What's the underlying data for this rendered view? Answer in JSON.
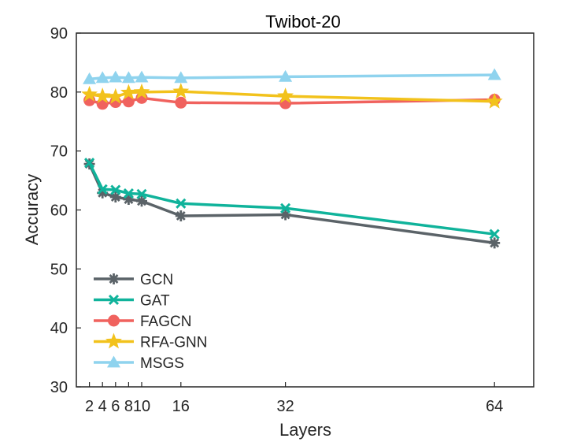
{
  "chart_data": {
    "type": "line",
    "title": "Twibot-20",
    "xlabel": "Layers",
    "ylabel": "Accuracy",
    "x": [
      2,
      4,
      6,
      8,
      10,
      16,
      32,
      64
    ],
    "xticks": [
      2,
      4,
      6,
      8,
      10,
      16,
      32,
      64
    ],
    "xtick_labels": [
      "2",
      "4",
      "6",
      "8",
      "10",
      "16",
      "32",
      "64"
    ],
    "xlim": [
      0,
      70
    ],
    "ylim": [
      30,
      90
    ],
    "yticks": [
      30,
      40,
      50,
      60,
      70,
      80,
      90
    ],
    "ytick_labels": [
      "30",
      "40",
      "50",
      "60",
      "70",
      "80",
      "90"
    ],
    "grid": false,
    "legend_position": "bottom-left",
    "series": [
      {
        "name": "GCN",
        "color": "#5b6368",
        "marker": "asterisk",
        "values": [
          67.8,
          62.9,
          62.2,
          61.8,
          61.5,
          59.0,
          59.2,
          54.4
        ]
      },
      {
        "name": "GAT",
        "color": "#10b39b",
        "marker": "x",
        "values": [
          68.0,
          63.5,
          63.4,
          62.8,
          62.7,
          61.1,
          60.3,
          55.9
        ]
      },
      {
        "name": "FAGCN",
        "color": "#f0625e",
        "marker": "circle",
        "values": [
          78.6,
          78.0,
          78.3,
          78.4,
          79.0,
          78.2,
          78.1,
          78.7
        ]
      },
      {
        "name": "RFA-GNN",
        "color": "#f2c21c",
        "marker": "star",
        "values": [
          79.6,
          79.3,
          79.2,
          79.9,
          80.0,
          80.1,
          79.3,
          78.4
        ]
      },
      {
        "name": "MSGS",
        "color": "#8fd3ee",
        "marker": "triangle",
        "values": [
          82.2,
          82.4,
          82.5,
          82.4,
          82.5,
          82.4,
          82.6,
          82.9
        ]
      }
    ]
  }
}
